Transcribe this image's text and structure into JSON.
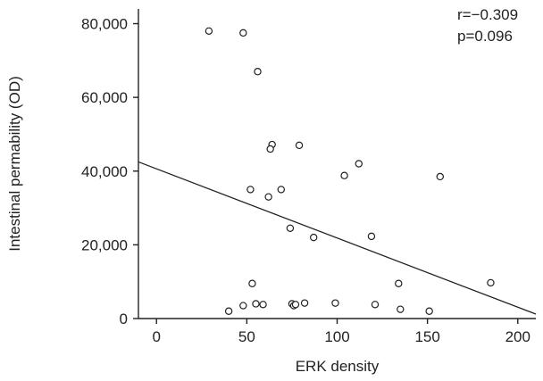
{
  "chart_data": {
    "type": "scatter",
    "title": "",
    "xlabel": "ERK density",
    "ylabel": "Intestinal permability (OD)",
    "xlim": [
      -10,
      210
    ],
    "ylim": [
      0,
      84000
    ],
    "x_ticks": [
      0,
      50,
      100,
      150,
      200
    ],
    "x_tick_labels": [
      "0",
      "50",
      "100",
      "150",
      "200"
    ],
    "y_ticks": [
      0,
      20000,
      40000,
      60000,
      80000
    ],
    "y_tick_labels": [
      "0",
      "20,000",
      "40,000",
      "60,000",
      "80,000"
    ],
    "grid": false,
    "marker": "open-circle",
    "annotations": [
      "r=−0.309",
      "p=0.096"
    ],
    "points": [
      {
        "x": 29,
        "y": 78000
      },
      {
        "x": 48,
        "y": 77500
      },
      {
        "x": 56,
        "y": 67000
      },
      {
        "x": 64,
        "y": 47200
      },
      {
        "x": 79,
        "y": 47000
      },
      {
        "x": 63,
        "y": 46000
      },
      {
        "x": 112,
        "y": 42000
      },
      {
        "x": 104,
        "y": 38800
      },
      {
        "x": 157,
        "y": 38500
      },
      {
        "x": 52,
        "y": 35000
      },
      {
        "x": 69,
        "y": 35000
      },
      {
        "x": 62,
        "y": 33000
      },
      {
        "x": 74,
        "y": 24500
      },
      {
        "x": 87,
        "y": 22000
      },
      {
        "x": 119,
        "y": 22300
      },
      {
        "x": 53,
        "y": 9500
      },
      {
        "x": 134,
        "y": 9500
      },
      {
        "x": 185,
        "y": 9700
      },
      {
        "x": 55,
        "y": 4000
      },
      {
        "x": 59,
        "y": 3800
      },
      {
        "x": 48,
        "y": 3500
      },
      {
        "x": 75,
        "y": 4000
      },
      {
        "x": 76,
        "y": 3500
      },
      {
        "x": 77,
        "y": 3800
      },
      {
        "x": 82,
        "y": 4200
      },
      {
        "x": 99,
        "y": 4200
      },
      {
        "x": 121,
        "y": 3800
      },
      {
        "x": 40,
        "y": 2000
      },
      {
        "x": 135,
        "y": 2500
      },
      {
        "x": 151,
        "y": 2000
      }
    ],
    "regression_line": {
      "x1": -10,
      "y1": 42500,
      "x2": 210,
      "y2": 1200
    }
  }
}
